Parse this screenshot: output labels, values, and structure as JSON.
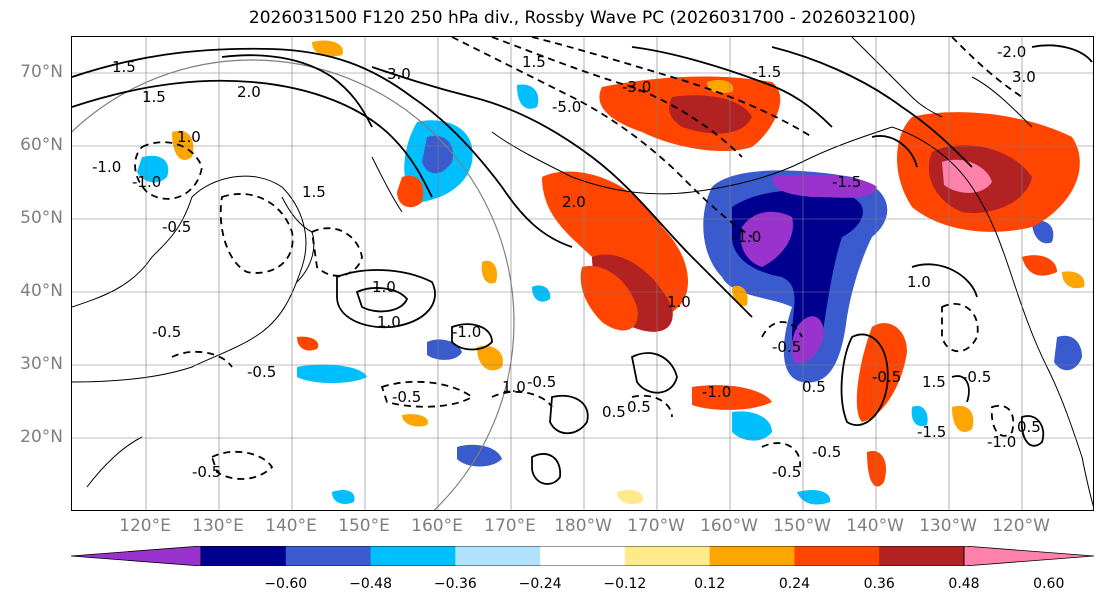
{
  "title": "2026031500 F120 250 hPa div., Rossby Wave PC (2026031700 - 2026032100)",
  "lat_labels": [
    "70°N",
    "60°N",
    "50°N",
    "40°N",
    "30°N",
    "20°N"
  ],
  "lon_labels": [
    "120°E",
    "130°E",
    "140°E",
    "150°E",
    "160°E",
    "170°E",
    "180°W",
    "170°W",
    "160°W",
    "150°W",
    "140°W",
    "130°W",
    "120°W"
  ],
  "colorbar": {
    "colors": [
      "#9a32cd",
      "#000090",
      "#3a5bcd",
      "#00bfff",
      "#b0e2ff",
      "#ffffff",
      "#ffe98a",
      "#ffa500",
      "#ff4500",
      "#b22222",
      "#ff82ab"
    ],
    "ticks": [
      "−0.60",
      "−0.48",
      "−0.36",
      "−0.24",
      "−0.12",
      "0.12",
      "0.24",
      "0.36",
      "0.48",
      "0.60"
    ]
  },
  "contour_labels": [
    "1.5",
    "1.5",
    "2.0",
    "3.0",
    "1.5",
    "-5.0",
    "-3.0",
    "-1.5",
    "1.0",
    "2.0",
    "-1.0",
    "-1.0",
    "1.5",
    "-0.5",
    "1.0",
    "1.0",
    "-0.5",
    "-0.5",
    "-1.0",
    "0.5",
    "1.0",
    "-0.5",
    "-0.5",
    "0.5",
    "-0.5",
    "0.5",
    "-1.0",
    "1.0",
    "-0.5",
    "-0.5",
    "-1.5",
    "3.0",
    "-2.0",
    "-1.0",
    "1.0",
    "1.5",
    "-0.5",
    "-1.5",
    "-0.5",
    "-1.0",
    "0.5",
    "-0.5"
  ]
}
